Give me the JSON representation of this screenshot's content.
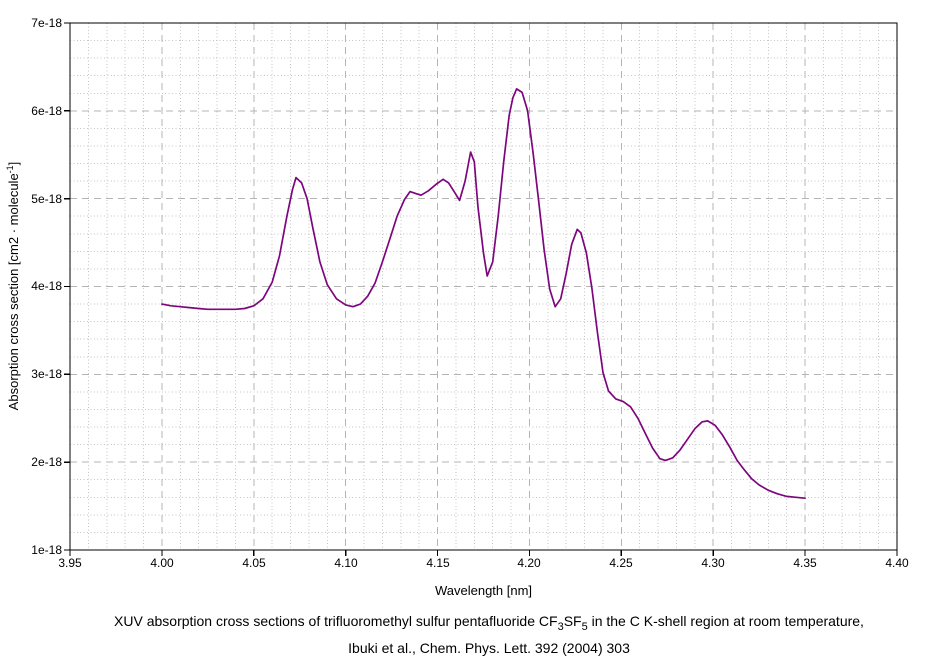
{
  "axes": {
    "x_title": "Wavelength [nm]",
    "y_title_main": "Absorption cross section [cm2 · molecule",
    "y_title_sup": "-1",
    "y_title_close": "]",
    "x_tick_labels": [
      "3.95",
      "4.00",
      "4.05",
      "4.10",
      "4.15",
      "4.20",
      "4.25",
      "4.30",
      "4.35",
      "4.40"
    ],
    "y_tick_labels": [
      "7e-18",
      "6e-18",
      "5e-18",
      "4e-18",
      "3e-18",
      "2e-18",
      "1e-18"
    ]
  },
  "caption": {
    "line1_a": "XUV absorption cross sections of trifluoromethyl sulfur pentafluoride CF",
    "line1_sub1": "3",
    "line1_b": "SF",
    "line1_sub2": "5",
    "line1_c": " in the C K-shell region at room temperature,",
    "line2": "Ibuki et al., Chem. Phys. Lett. 392 (2004) 303"
  },
  "colors": {
    "line": "#7D067E",
    "grid_major": "#b4b4b4",
    "grid_minor": "#c6c6c6",
    "frame": "#000000",
    "tick": "#000000",
    "background": "#ffffff"
  },
  "chart_data": {
    "type": "line",
    "title": "",
    "xlabel": "Wavelength [nm]",
    "ylabel": "Absorption cross section [cm2 · molecule-1]",
    "legend": "none",
    "grid": "major dashed gray + minor dotted light gray",
    "xlim": [
      3.95,
      4.4
    ],
    "ylim_1e18": [
      1,
      7
    ],
    "y_unit": "1e-18 cm2 / molecule",
    "x_major_step": 0.05,
    "x_minor_step": 0.01,
    "y_major_step_1e18": 1,
    "y_minor_step_1e18": 0.2,
    "line_color": "#7D067E",
    "series": [
      {
        "name": "CF3SF5 absorption cross section (sigma in 1e-18 cm2/molecule)",
        "points": [
          [
            4.0,
            3.8
          ],
          [
            4.005,
            3.78
          ],
          [
            4.01,
            3.77
          ],
          [
            4.015,
            3.76
          ],
          [
            4.02,
            3.75
          ],
          [
            4.025,
            3.74
          ],
          [
            4.03,
            3.74
          ],
          [
            4.035,
            3.74
          ],
          [
            4.04,
            3.74
          ],
          [
            4.045,
            3.75
          ],
          [
            4.05,
            3.78
          ],
          [
            4.055,
            3.86
          ],
          [
            4.06,
            4.05
          ],
          [
            4.064,
            4.35
          ],
          [
            4.068,
            4.8
          ],
          [
            4.071,
            5.1
          ],
          [
            4.073,
            5.24
          ],
          [
            4.076,
            5.18
          ],
          [
            4.079,
            5.0
          ],
          [
            4.082,
            4.68
          ],
          [
            4.086,
            4.28
          ],
          [
            4.09,
            4.02
          ],
          [
            4.095,
            3.86
          ],
          [
            4.1,
            3.79
          ],
          [
            4.104,
            3.77
          ],
          [
            4.108,
            3.8
          ],
          [
            4.112,
            3.89
          ],
          [
            4.116,
            4.04
          ],
          [
            4.12,
            4.28
          ],
          [
            4.124,
            4.54
          ],
          [
            4.128,
            4.8
          ],
          [
            4.132,
            4.99
          ],
          [
            4.135,
            5.08
          ],
          [
            4.138,
            5.06
          ],
          [
            4.141,
            5.04
          ],
          [
            4.145,
            5.09
          ],
          [
            4.149,
            5.16
          ],
          [
            4.153,
            5.22
          ],
          [
            4.156,
            5.18
          ],
          [
            4.159,
            5.08
          ],
          [
            4.162,
            4.98
          ],
          [
            4.165,
            5.2
          ],
          [
            4.168,
            5.53
          ],
          [
            4.17,
            5.42
          ],
          [
            4.172,
            4.9
          ],
          [
            4.175,
            4.38
          ],
          [
            4.177,
            4.12
          ],
          [
            4.18,
            4.28
          ],
          [
            4.183,
            4.8
          ],
          [
            4.186,
            5.42
          ],
          [
            4.189,
            5.95
          ],
          [
            4.191,
            6.15
          ],
          [
            4.193,
            6.25
          ],
          [
            4.196,
            6.21
          ],
          [
            4.199,
            6.0
          ],
          [
            4.202,
            5.52
          ],
          [
            4.205,
            4.98
          ],
          [
            4.208,
            4.42
          ],
          [
            4.211,
            3.97
          ],
          [
            4.214,
            3.77
          ],
          [
            4.217,
            3.86
          ],
          [
            4.22,
            4.15
          ],
          [
            4.223,
            4.48
          ],
          [
            4.226,
            4.65
          ],
          [
            4.228,
            4.61
          ],
          [
            4.231,
            4.38
          ],
          [
            4.234,
            3.98
          ],
          [
            4.237,
            3.48
          ],
          [
            4.24,
            3.02
          ],
          [
            4.243,
            2.81
          ],
          [
            4.247,
            2.72
          ],
          [
            4.251,
            2.69
          ],
          [
            4.255,
            2.63
          ],
          [
            4.259,
            2.5
          ],
          [
            4.263,
            2.33
          ],
          [
            4.267,
            2.16
          ],
          [
            4.271,
            2.04
          ],
          [
            4.274,
            2.02
          ],
          [
            4.278,
            2.05
          ],
          [
            4.282,
            2.14
          ],
          [
            4.286,
            2.26
          ],
          [
            4.29,
            2.38
          ],
          [
            4.294,
            2.46
          ],
          [
            4.297,
            2.47
          ],
          [
            4.301,
            2.42
          ],
          [
            4.305,
            2.31
          ],
          [
            4.309,
            2.17
          ],
          [
            4.313,
            2.02
          ],
          [
            4.317,
            1.91
          ],
          [
            4.321,
            1.81
          ],
          [
            4.325,
            1.74
          ],
          [
            4.33,
            1.68
          ],
          [
            4.335,
            1.64
          ],
          [
            4.34,
            1.61
          ],
          [
            4.345,
            1.6
          ],
          [
            4.35,
            1.59
          ]
        ]
      }
    ]
  }
}
